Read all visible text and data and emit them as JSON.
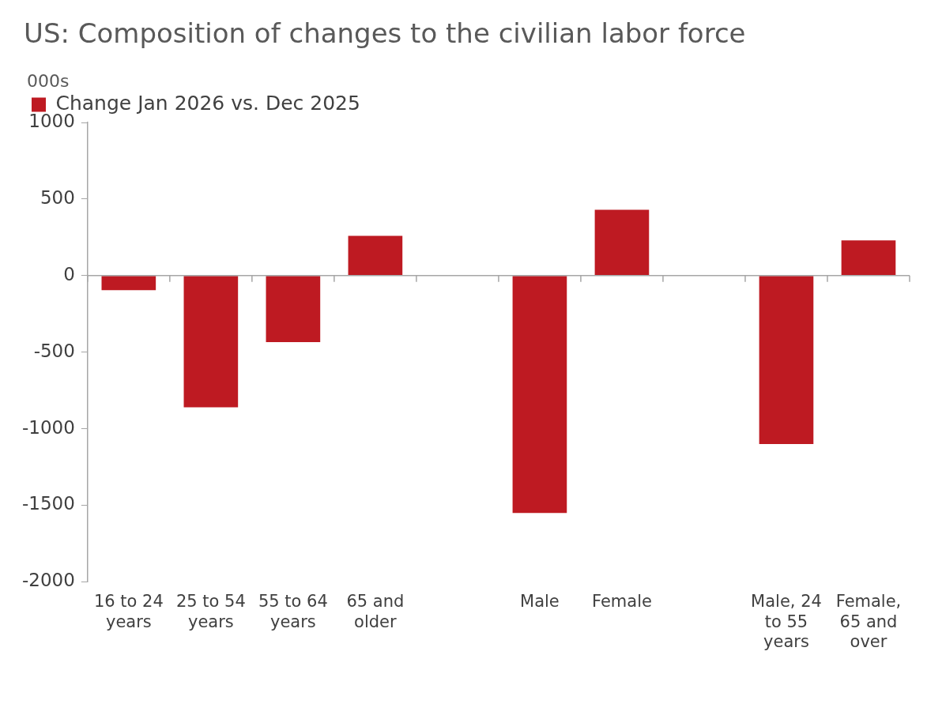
{
  "chart_data": {
    "type": "bar",
    "title": "US: Composition of changes to the civilian labor force",
    "ylabel": "000s",
    "categories": [
      "16 to 24 years",
      "25 to 54 years",
      "55 to 64 years",
      "65 and older",
      null,
      "Male",
      "Female",
      null,
      "Male, 24 to 55 years",
      "Female, 65 and over"
    ],
    "series": [
      {
        "name": "Change Jan 2026 vs. Dec 2025",
        "color": "#be1a22",
        "values": [
          -95,
          -860,
          -435,
          260,
          null,
          -1550,
          430,
          null,
          -1100,
          230
        ]
      }
    ],
    "ylim": [
      -2000,
      1000
    ],
    "yticks": [
      -2000,
      -1500,
      -1000,
      -500,
      0,
      500,
      1000
    ],
    "legend": "top left"
  }
}
